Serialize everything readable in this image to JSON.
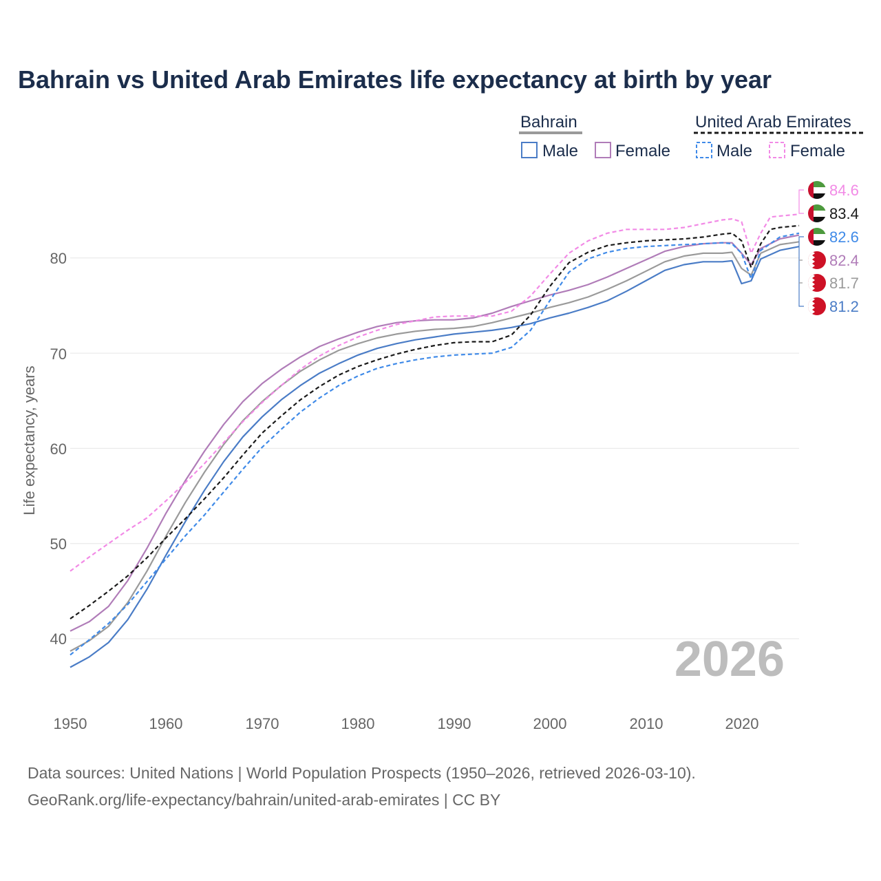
{
  "chart_data": {
    "type": "line",
    "title": "Bahrain vs United Arab Emirates life expectancy at birth by year",
    "ylabel": "Life expectancy, years",
    "xlim": [
      1950,
      2026
    ],
    "ylim": [
      34,
      87
    ],
    "x_ticks": [
      "1950",
      "1960",
      "1970",
      "1980",
      "1990",
      "2000",
      "2010",
      "2020"
    ],
    "y_ticks": [
      "40",
      "50",
      "60",
      "70",
      "80"
    ],
    "year_label": "2026",
    "legend": {
      "groups": [
        {
          "title": "Bahrain",
          "items": [
            "Male",
            "Female"
          ]
        },
        {
          "title": "United Arab Emirates",
          "items": [
            "Male",
            "Female"
          ]
        }
      ]
    },
    "colors": {
      "bahrain_male": "#4a7cc6",
      "bahrain_female": "#b07cb8",
      "bahrain_total": "#9a9a9a",
      "uae_male": "#3f8ae8",
      "uae_female": "#f28ae6",
      "uae_total": "#1a1a1a"
    },
    "end_labels": [
      "84.6",
      "83.4",
      "82.6",
      "82.4",
      "81.7",
      "81.2"
    ],
    "series": [
      {
        "name": "Bahrain Male",
        "key": "bahrain_male",
        "dash": false,
        "points": [
          [
            1950,
            37.0
          ],
          [
            1952,
            38.1
          ],
          [
            1954,
            39.6
          ],
          [
            1956,
            42.0
          ],
          [
            1958,
            45.2
          ],
          [
            1960,
            48.8
          ],
          [
            1962,
            52.3
          ],
          [
            1964,
            55.6
          ],
          [
            1966,
            58.6
          ],
          [
            1968,
            61.2
          ],
          [
            1970,
            63.3
          ],
          [
            1972,
            65.1
          ],
          [
            1974,
            66.6
          ],
          [
            1976,
            67.9
          ],
          [
            1978,
            68.9
          ],
          [
            1980,
            69.8
          ],
          [
            1982,
            70.5
          ],
          [
            1984,
            71.0
          ],
          [
            1986,
            71.4
          ],
          [
            1988,
            71.7
          ],
          [
            1990,
            72.0
          ],
          [
            1992,
            72.2
          ],
          [
            1994,
            72.4
          ],
          [
            1996,
            72.7
          ],
          [
            1998,
            73.1
          ],
          [
            2000,
            73.7
          ],
          [
            2002,
            74.2
          ],
          [
            2004,
            74.8
          ],
          [
            2006,
            75.5
          ],
          [
            2008,
            76.5
          ],
          [
            2010,
            77.6
          ],
          [
            2012,
            78.7
          ],
          [
            2014,
            79.3
          ],
          [
            2016,
            79.6
          ],
          [
            2018,
            79.6
          ],
          [
            2019,
            79.7
          ],
          [
            2020,
            77.3
          ],
          [
            2021,
            77.6
          ],
          [
            2022,
            79.9
          ],
          [
            2024,
            80.8
          ],
          [
            2026,
            81.2
          ]
        ]
      },
      {
        "name": "Bahrain Female",
        "key": "bahrain_female",
        "dash": false,
        "points": [
          [
            1950,
            40.8
          ],
          [
            1952,
            41.8
          ],
          [
            1954,
            43.4
          ],
          [
            1956,
            46.1
          ],
          [
            1958,
            49.5
          ],
          [
            1960,
            53.2
          ],
          [
            1962,
            56.6
          ],
          [
            1964,
            59.7
          ],
          [
            1966,
            62.5
          ],
          [
            1968,
            64.9
          ],
          [
            1970,
            66.8
          ],
          [
            1972,
            68.3
          ],
          [
            1974,
            69.6
          ],
          [
            1976,
            70.7
          ],
          [
            1978,
            71.5
          ],
          [
            1980,
            72.2
          ],
          [
            1982,
            72.8
          ],
          [
            1984,
            73.2
          ],
          [
            1986,
            73.4
          ],
          [
            1988,
            73.5
          ],
          [
            1990,
            73.5
          ],
          [
            1992,
            73.7
          ],
          [
            1994,
            74.2
          ],
          [
            1996,
            74.9
          ],
          [
            1998,
            75.5
          ],
          [
            2000,
            76.1
          ],
          [
            2002,
            76.6
          ],
          [
            2004,
            77.2
          ],
          [
            2006,
            78.0
          ],
          [
            2008,
            78.9
          ],
          [
            2010,
            79.8
          ],
          [
            2012,
            80.7
          ],
          [
            2014,
            81.2
          ],
          [
            2016,
            81.5
          ],
          [
            2018,
            81.6
          ],
          [
            2019,
            81.6
          ],
          [
            2020,
            80.5
          ],
          [
            2021,
            79.3
          ],
          [
            2022,
            81.0
          ],
          [
            2024,
            82.0
          ],
          [
            2026,
            82.4
          ]
        ]
      },
      {
        "name": "Bahrain Total",
        "key": "bahrain_total",
        "dash": false,
        "points": [
          [
            1950,
            38.7
          ],
          [
            1952,
            39.8
          ],
          [
            1954,
            41.3
          ],
          [
            1956,
            43.8
          ],
          [
            1958,
            47.1
          ],
          [
            1960,
            50.8
          ],
          [
            1962,
            54.3
          ],
          [
            1964,
            57.5
          ],
          [
            1966,
            60.4
          ],
          [
            1968,
            62.9
          ],
          [
            1970,
            64.9
          ],
          [
            1972,
            66.6
          ],
          [
            1974,
            68.1
          ],
          [
            1976,
            69.3
          ],
          [
            1978,
            70.3
          ],
          [
            1980,
            71.0
          ],
          [
            1982,
            71.6
          ],
          [
            1984,
            72.0
          ],
          [
            1986,
            72.3
          ],
          [
            1988,
            72.5
          ],
          [
            1990,
            72.6
          ],
          [
            1992,
            72.8
          ],
          [
            1994,
            73.2
          ],
          [
            1996,
            73.7
          ],
          [
            1998,
            74.2
          ],
          [
            2000,
            74.8
          ],
          [
            2002,
            75.3
          ],
          [
            2004,
            75.9
          ],
          [
            2006,
            76.7
          ],
          [
            2008,
            77.6
          ],
          [
            2010,
            78.6
          ],
          [
            2012,
            79.6
          ],
          [
            2014,
            80.2
          ],
          [
            2016,
            80.5
          ],
          [
            2018,
            80.5
          ],
          [
            2019,
            80.6
          ],
          [
            2020,
            78.9
          ],
          [
            2021,
            78.2
          ],
          [
            2022,
            80.5
          ],
          [
            2024,
            81.4
          ],
          [
            2026,
            81.7
          ]
        ]
      },
      {
        "name": "United Arab Emirates Male",
        "key": "uae_male",
        "dash": true,
        "points": [
          [
            1950,
            38.3
          ],
          [
            1952,
            39.9
          ],
          [
            1954,
            41.6
          ],
          [
            1956,
            43.6
          ],
          [
            1958,
            46.0
          ],
          [
            1960,
            48.4
          ],
          [
            1962,
            50.8
          ],
          [
            1964,
            53.0
          ],
          [
            1966,
            55.4
          ],
          [
            1968,
            57.8
          ],
          [
            1970,
            60.1
          ],
          [
            1972,
            62.0
          ],
          [
            1974,
            63.8
          ],
          [
            1976,
            65.3
          ],
          [
            1978,
            66.6
          ],
          [
            1980,
            67.6
          ],
          [
            1982,
            68.4
          ],
          [
            1984,
            68.9
          ],
          [
            1986,
            69.3
          ],
          [
            1988,
            69.6
          ],
          [
            1990,
            69.8
          ],
          [
            1992,
            69.9
          ],
          [
            1994,
            70.0
          ],
          [
            1996,
            70.6
          ],
          [
            1998,
            72.4
          ],
          [
            2000,
            75.5
          ],
          [
            2002,
            78.5
          ],
          [
            2004,
            79.9
          ],
          [
            2006,
            80.6
          ],
          [
            2008,
            81.0
          ],
          [
            2010,
            81.2
          ],
          [
            2012,
            81.3
          ],
          [
            2014,
            81.4
          ],
          [
            2016,
            81.5
          ],
          [
            2018,
            81.6
          ],
          [
            2019,
            81.5
          ],
          [
            2020,
            80.5
          ],
          [
            2021,
            77.8
          ],
          [
            2022,
            80.8
          ],
          [
            2024,
            82.2
          ],
          [
            2026,
            82.6
          ]
        ]
      },
      {
        "name": "United Arab Emirates Female",
        "key": "uae_female",
        "dash": true,
        "points": [
          [
            1950,
            47.1
          ],
          [
            1952,
            48.6
          ],
          [
            1954,
            50.0
          ],
          [
            1956,
            51.4
          ],
          [
            1958,
            52.7
          ],
          [
            1960,
            54.5
          ],
          [
            1962,
            56.4
          ],
          [
            1964,
            58.4
          ],
          [
            1966,
            60.6
          ],
          [
            1968,
            62.8
          ],
          [
            1970,
            64.8
          ],
          [
            1972,
            66.6
          ],
          [
            1974,
            68.3
          ],
          [
            1976,
            69.7
          ],
          [
            1978,
            70.8
          ],
          [
            1980,
            71.7
          ],
          [
            1982,
            72.4
          ],
          [
            1984,
            73.0
          ],
          [
            1986,
            73.4
          ],
          [
            1988,
            73.8
          ],
          [
            1990,
            73.9
          ],
          [
            1992,
            73.9
          ],
          [
            1994,
            73.9
          ],
          [
            1996,
            74.4
          ],
          [
            1998,
            76.0
          ],
          [
            2000,
            78.3
          ],
          [
            2002,
            80.5
          ],
          [
            2004,
            81.8
          ],
          [
            2006,
            82.6
          ],
          [
            2008,
            83.0
          ],
          [
            2010,
            83.0
          ],
          [
            2012,
            83.0
          ],
          [
            2014,
            83.2
          ],
          [
            2016,
            83.6
          ],
          [
            2018,
            84.0
          ],
          [
            2019,
            84.1
          ],
          [
            2020,
            83.8
          ],
          [
            2021,
            80.5
          ],
          [
            2022,
            82.6
          ],
          [
            2023,
            84.3
          ],
          [
            2024,
            84.4
          ],
          [
            2026,
            84.6
          ]
        ]
      },
      {
        "name": "United Arab Emirates Total",
        "key": "uae_total",
        "dash": true,
        "points": [
          [
            1950,
            42.1
          ],
          [
            1952,
            43.5
          ],
          [
            1954,
            45.0
          ],
          [
            1956,
            46.6
          ],
          [
            1958,
            48.5
          ],
          [
            1960,
            50.6
          ],
          [
            1962,
            52.6
          ],
          [
            1964,
            54.7
          ],
          [
            1966,
            56.9
          ],
          [
            1968,
            59.3
          ],
          [
            1970,
            61.6
          ],
          [
            1972,
            63.4
          ],
          [
            1974,
            65.1
          ],
          [
            1976,
            66.5
          ],
          [
            1978,
            67.7
          ],
          [
            1980,
            68.6
          ],
          [
            1982,
            69.3
          ],
          [
            1984,
            69.9
          ],
          [
            1986,
            70.4
          ],
          [
            1988,
            70.8
          ],
          [
            1990,
            71.1
          ],
          [
            1992,
            71.2
          ],
          [
            1994,
            71.2
          ],
          [
            1996,
            71.9
          ],
          [
            1998,
            74.0
          ],
          [
            2000,
            77.0
          ],
          [
            2002,
            79.5
          ],
          [
            2004,
            80.6
          ],
          [
            2006,
            81.3
          ],
          [
            2008,
            81.6
          ],
          [
            2010,
            81.8
          ],
          [
            2012,
            81.9
          ],
          [
            2014,
            82.0
          ],
          [
            2016,
            82.2
          ],
          [
            2018,
            82.5
          ],
          [
            2019,
            82.6
          ],
          [
            2020,
            81.8
          ],
          [
            2021,
            79.0
          ],
          [
            2022,
            81.5
          ],
          [
            2023,
            83.0
          ],
          [
            2024,
            83.2
          ],
          [
            2026,
            83.4
          ]
        ]
      }
    ]
  },
  "footer": {
    "line1": "Data sources: United Nations | World Population Prospects (1950–2026, retrieved 2026-03-10).",
    "line2": "GeoRank.org/life-expectancy/bahrain/united-arab-emirates | CC BY"
  }
}
